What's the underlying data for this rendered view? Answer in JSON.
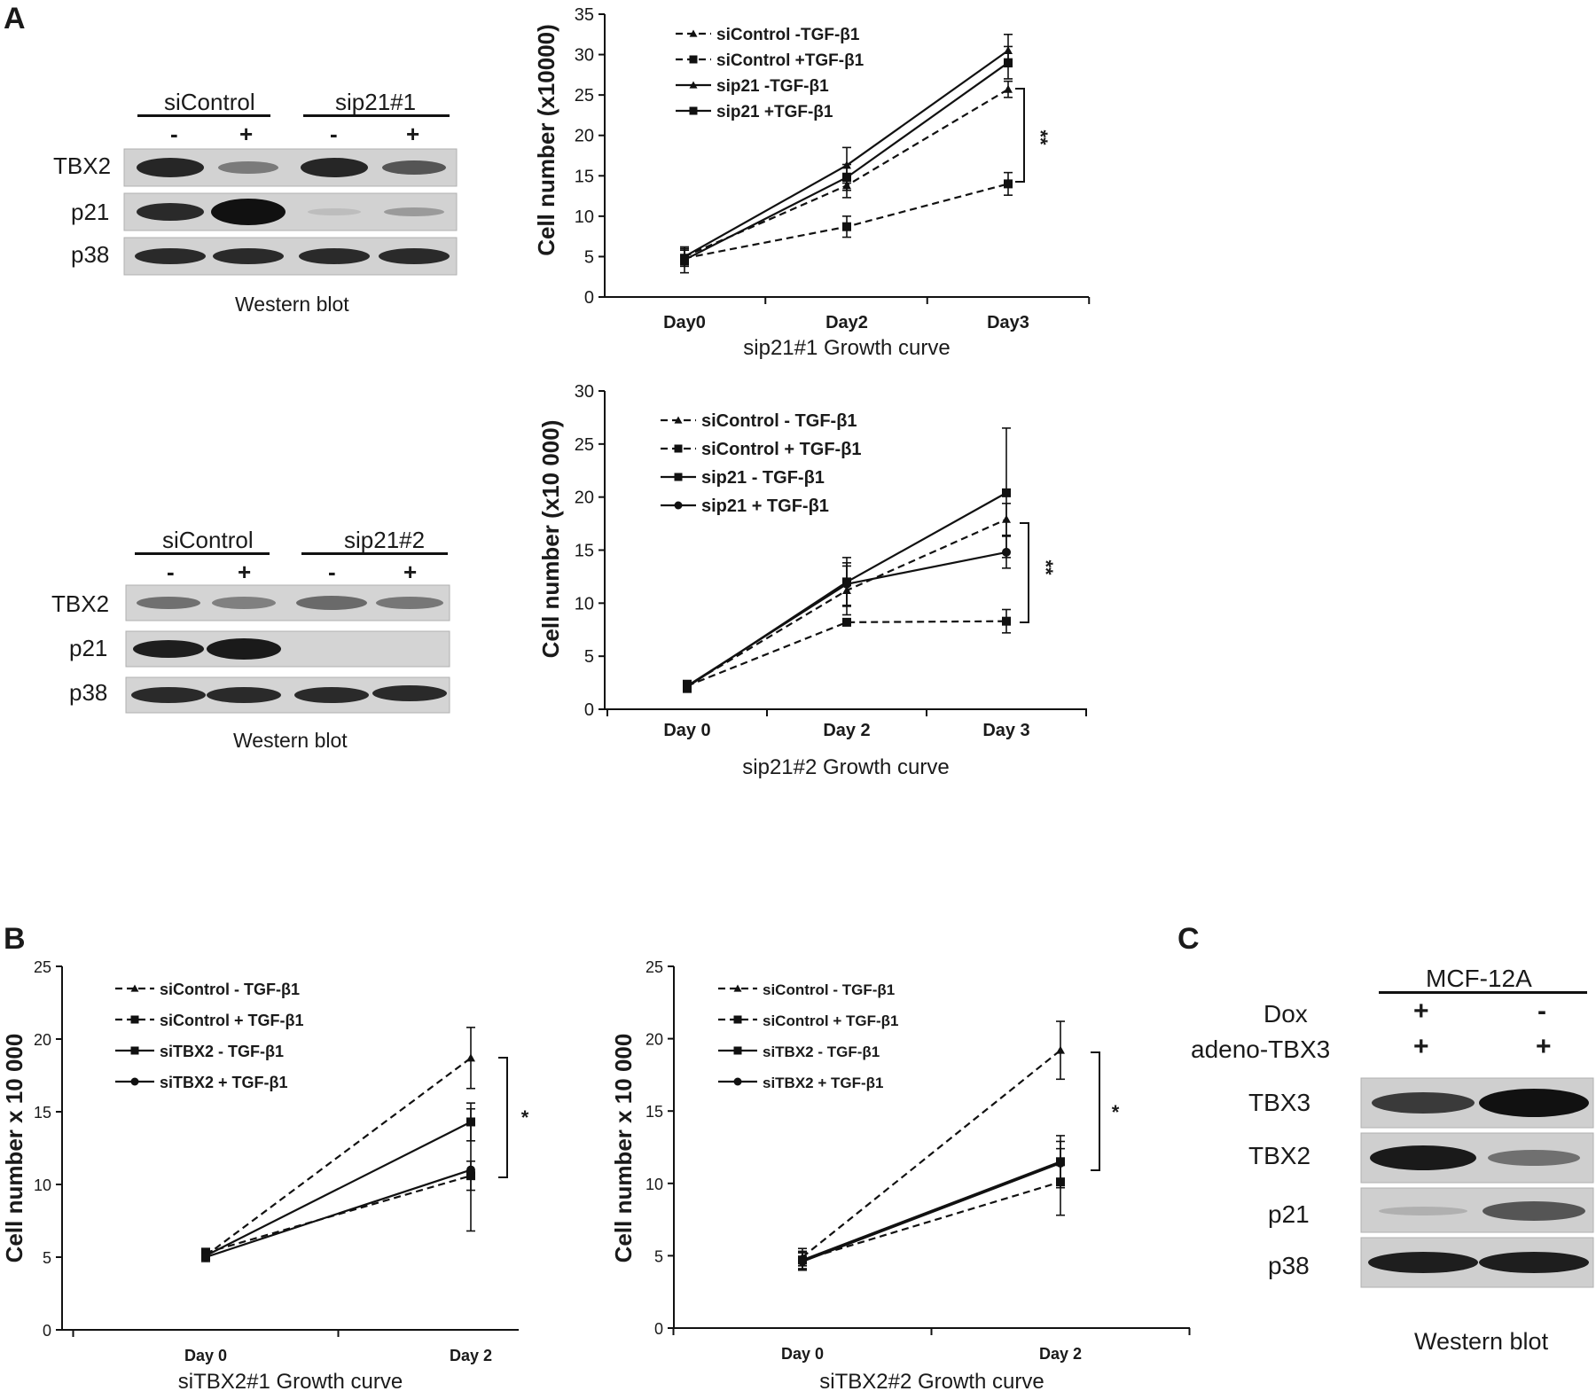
{
  "panel_labels": {
    "a": "A",
    "b": "B",
    "c": "C"
  },
  "blots": {
    "blot1": {
      "groups": [
        "siControl",
        "sip21#1"
      ],
      "lanes": [
        "-",
        "+",
        "-",
        "+"
      ],
      "rows": [
        "TBX2",
        "p21",
        "p38"
      ],
      "caption": "Western blot"
    },
    "blot2": {
      "groups": [
        "siControl",
        "sip21#2"
      ],
      "lanes": [
        "-",
        "+",
        "-",
        "+"
      ],
      "rows": [
        "TBX2",
        "p21",
        "p38"
      ],
      "caption": "Western blot"
    },
    "blot3": {
      "title": "MCF-12A",
      "cond1_label": "Dox",
      "cond1_values": [
        "+",
        "-"
      ],
      "cond2_label": "adeno-TBX3",
      "cond2_values": [
        "+",
        "+"
      ],
      "rows": [
        "TBX3",
        "TBX2",
        "p21",
        "p38"
      ],
      "caption": "Western blot"
    }
  },
  "chart_data": [
    {
      "type": "line",
      "title": "sip21#1 Growth curve",
      "xlabel": "sip21#1 Growth curve",
      "ylabel": "Cell number (x10000)",
      "categories": [
        "Day0",
        "Day2",
        "Day3"
      ],
      "ylim": [
        0,
        35
      ],
      "yticks": [
        0,
        5,
        10,
        15,
        20,
        25,
        30,
        35
      ],
      "legend_position": "top-left",
      "significance": "**",
      "series": [
        {
          "name": "siControl -TGF-β1",
          "style": "dashed",
          "marker": "triangle",
          "values": [
            5,
            13.8,
            25.7
          ],
          "errors": [
            1.0,
            1.5,
            1.0
          ]
        },
        {
          "name": "siControl +TGF-β1",
          "style": "dashed",
          "marker": "square",
          "values": [
            4.8,
            8.7,
            14
          ],
          "errors": [
            1.0,
            1.3,
            1.4
          ]
        },
        {
          "name": "sip21 -TGF-β1",
          "style": "solid",
          "marker": "triangle",
          "values": [
            5,
            16.3,
            30.5
          ],
          "errors": [
            0.8,
            2.2,
            2.0
          ]
        },
        {
          "name": "sip21 +TGF-β1",
          "style": "solid",
          "marker": "square",
          "values": [
            4.6,
            14.8,
            29
          ],
          "errors": [
            1.6,
            1.6,
            2.0
          ]
        }
      ]
    },
    {
      "type": "line",
      "title": "sip21#2 Growth curve",
      "xlabel": "sip21#2 Growth curve",
      "ylabel": "Cell number (x10 000)",
      "categories": [
        "Day 0",
        "Day 2",
        "Day 3"
      ],
      "ylim": [
        0,
        30
      ],
      "yticks": [
        0,
        5,
        10,
        15,
        20,
        25,
        30
      ],
      "legend_position": "top-left",
      "significance": "**",
      "series": [
        {
          "name": "siControl - TGF-β1",
          "style": "dashed",
          "marker": "triangle",
          "values": [
            2.2,
            11.2,
            17.9
          ],
          "errors": [
            0.5,
            2.3,
            1.5
          ]
        },
        {
          "name": "siControl + TGF-β1",
          "style": "dashed",
          "marker": "square",
          "values": [
            2.2,
            8.2,
            8.3
          ],
          "errors": [
            0.5,
            0.2,
            1.1
          ]
        },
        {
          "name": "sip21 - TGF-β1",
          "style": "solid",
          "marker": "square",
          "values": [
            2.1,
            12,
            20.4
          ],
          "errors": [
            0.5,
            2.3,
            6.1
          ]
        },
        {
          "name": "sip21 + TGF-β1",
          "style": "solid",
          "marker": "circle",
          "values": [
            2.2,
            11.8,
            14.8
          ],
          "errors": [
            0.5,
            2.0,
            1.5
          ]
        }
      ]
    },
    {
      "type": "line",
      "title": "siTBX2#1 Growth curve",
      "xlabel": "siTBX2#1 Growth curve",
      "ylabel": "Cell number  x 10 000",
      "categories": [
        "Day 0",
        "Day 2"
      ],
      "ylim": [
        0,
        25
      ],
      "yticks": [
        0,
        5,
        10,
        15,
        20,
        25
      ],
      "legend_position": "top-left",
      "significance": "*",
      "series": [
        {
          "name": "siControl - TGF-β1",
          "style": "dashed",
          "marker": "triangle",
          "values": [
            5.1,
            18.7
          ],
          "errors": [
            0.3,
            2.1
          ]
        },
        {
          "name": "siControl + TGF-β1",
          "style": "dashed",
          "marker": "square",
          "values": [
            5.3,
            10.6
          ],
          "errors": [
            0.3,
            1.0
          ]
        },
        {
          "name": "siTBX2 - TGF-β1",
          "style": "solid",
          "marker": "square",
          "values": [
            5.1,
            14.3
          ],
          "errors": [
            0.3,
            1.3
          ]
        },
        {
          "name": "siTBX2 + TGF-β1",
          "style": "solid",
          "marker": "circle",
          "values": [
            5.0,
            11.0
          ],
          "errors": [
            0.3,
            4.2
          ]
        }
      ]
    },
    {
      "type": "line",
      "title": "siTBX2#2 Growth curve",
      "xlabel": "siTBX2#2 Growth curve",
      "ylabel": "Cell number  x 10 000",
      "categories": [
        "Day 0",
        "Day 2"
      ],
      "ylim": [
        0,
        25
      ],
      "yticks": [
        0,
        5,
        10,
        15,
        20,
        25
      ],
      "legend_position": "top-left",
      "significance": "*",
      "series": [
        {
          "name": "siControl - TGF-β1",
          "style": "dashed",
          "marker": "triangle",
          "values": [
            4.9,
            19.2
          ],
          "errors": [
            0.6,
            2.0
          ]
        },
        {
          "name": "siControl + TGF-β1",
          "style": "dashed",
          "marker": "square",
          "values": [
            4.7,
            10.1
          ],
          "errors": [
            0.6,
            2.3
          ]
        },
        {
          "name": "siTBX2 - TGF-β1",
          "style": "solid",
          "marker": "square",
          "values": [
            4.7,
            11.5
          ],
          "errors": [
            0.6,
            1.8
          ]
        },
        {
          "name": "siTBX2 + TGF-β1",
          "style": "solid",
          "marker": "circle",
          "values": [
            4.6,
            11.4
          ],
          "errors": [
            0.6,
            1.5
          ]
        }
      ]
    }
  ]
}
